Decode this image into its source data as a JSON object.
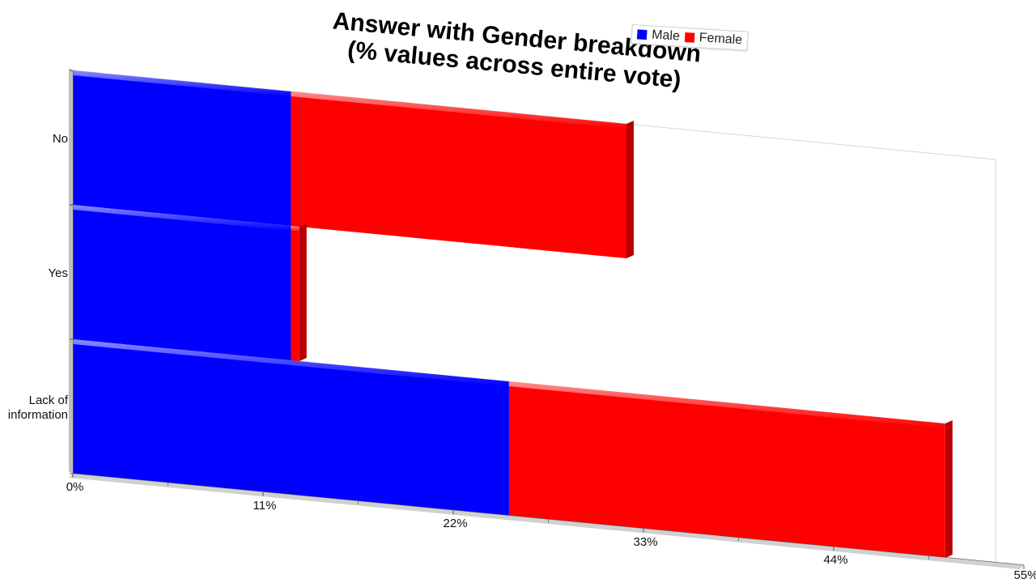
{
  "chart_data": {
    "type": "bar",
    "orientation": "horizontal",
    "stacked": true,
    "title": "Answer with Gender breakdown",
    "subtitle": "(% values across entire vote)",
    "categories": [
      "No",
      "Yes",
      "Lack of information"
    ],
    "category_label_lines": [
      [
        "No"
      ],
      [
        "Yes"
      ],
      [
        "Lack of",
        "information"
      ]
    ],
    "series": [
      {
        "name": "Male",
        "color": "#0000ff",
        "values": [
          13,
          13,
          26
        ]
      },
      {
        "name": "Female",
        "color": "#ff0000",
        "values": [
          20,
          0.5,
          26
        ]
      }
    ],
    "xlim": [
      0,
      55
    ],
    "xticks": [
      0,
      11,
      22,
      33,
      44,
      55
    ],
    "xtick_labels": [
      "0%",
      "11%",
      "22%",
      "33%",
      "44%",
      "55%"
    ],
    "legend_position": "top-right",
    "grid": false
  }
}
